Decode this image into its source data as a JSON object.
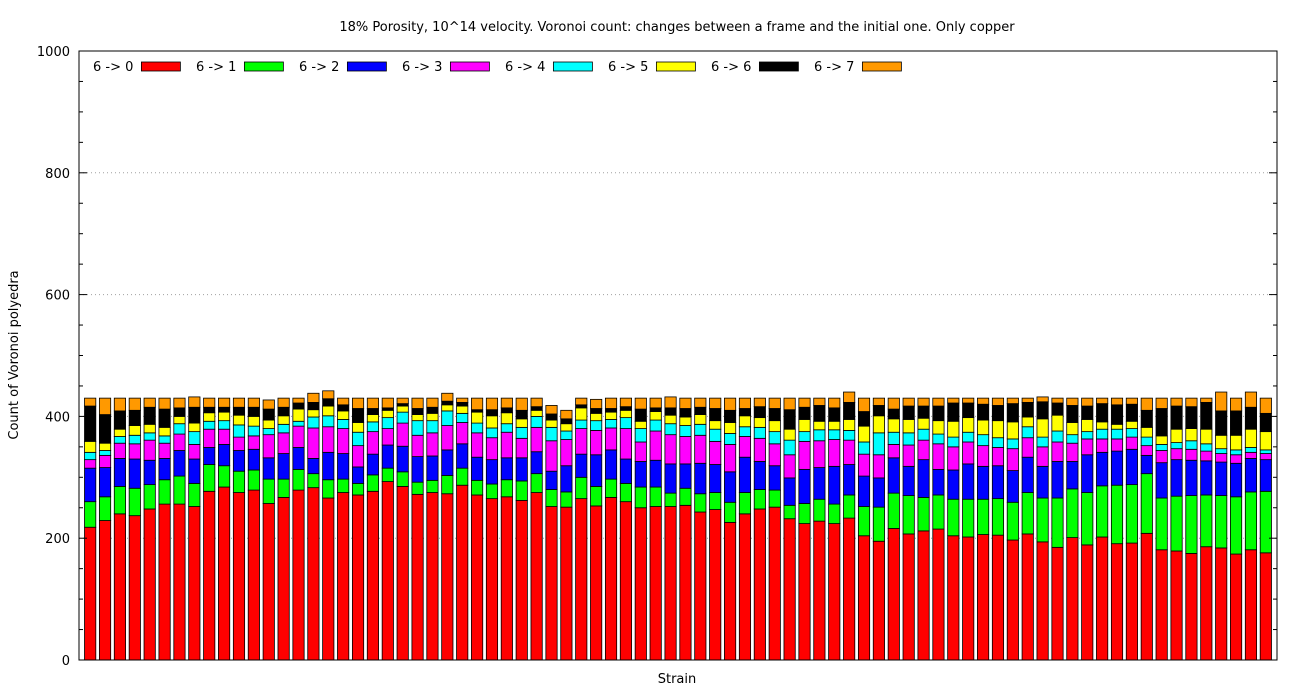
{
  "chart_data": {
    "type": "bar",
    "stacked": true,
    "title": "18% Porosity, 10^14 velocity. Voronoi count: changes between a frame and the initial one. Only copper",
    "xlabel": "Strain",
    "ylabel": "Count of Voronoi polyedra",
    "ylim": [
      0,
      1000
    ],
    "yticks": [
      0,
      200,
      400,
      600,
      800,
      1000
    ],
    "grid": true,
    "legend_position": "top-left",
    "total_per_bar": 430,
    "series": [
      {
        "name": "6 -> 0",
        "color": "#ff0000",
        "values": [
          218,
          229,
          240,
          237,
          248,
          256,
          256,
          252,
          277,
          284,
          275,
          279,
          257,
          267,
          279,
          283,
          266,
          275,
          271,
          277,
          293,
          285,
          272,
          275,
          273,
          287,
          271,
          265,
          268,
          262,
          275,
          252,
          251,
          265,
          253,
          267,
          260,
          250,
          252,
          252,
          254,
          243,
          247,
          226,
          240,
          248,
          251,
          232,
          224,
          228,
          224,
          233,
          204,
          195,
          216,
          207,
          212,
          215,
          204,
          202,
          206,
          205,
          197,
          207,
          194,
          185,
          201,
          189,
          202,
          191,
          192,
          208,
          181,
          179,
          175,
          186,
          184,
          174,
          181,
          176
        ]
      },
      {
        "name": "6 -> 1",
        "color": "#00ff00",
        "values": [
          42,
          39,
          45,
          45,
          40,
          40,
          46,
          38,
          44,
          35,
          35,
          33,
          40,
          30,
          34,
          23,
          30,
          22,
          19,
          27,
          22,
          24,
          20,
          20,
          30,
          28,
          24,
          24,
          28,
          32,
          31,
          28,
          25,
          35,
          32,
          30,
          30,
          34,
          32,
          22,
          28,
          30,
          28,
          33,
          35,
          32,
          28,
          22,
          33,
          36,
          32,
          38,
          48,
          56,
          58,
          63,
          55,
          56,
          60,
          62,
          58,
          60,
          62,
          68,
          72,
          81,
          80,
          86,
          84,
          96,
          96,
          98,
          85,
          90,
          95,
          85,
          86,
          94,
          95,
          101
        ]
      },
      {
        "name": "6 -> 2",
        "color": "#0000ff",
        "values": [
          55,
          48,
          46,
          48,
          40,
          35,
          42,
          40,
          28,
          35,
          34,
          34,
          35,
          42,
          36,
          25,
          45,
          42,
          27,
          34,
          38,
          42,
          42,
          40,
          42,
          40,
          38,
          40,
          36,
          38,
          36,
          30,
          43,
          38,
          52,
          48,
          40,
          42,
          44,
          48,
          40,
          50,
          46,
          50,
          58,
          46,
          40,
          45,
          56,
          52,
          62,
          50,
          50,
          48,
          58,
          48,
          62,
          42,
          48,
          58,
          54,
          54,
          52,
          58,
          52,
          60,
          45,
          62,
          55,
          56,
          58,
          30,
          58,
          60,
          58,
          56,
          55,
          55,
          55,
          52
        ]
      },
      {
        "name": "6 -> 3",
        "color": "#ff00ff",
        "values": [
          14,
          20,
          25,
          25,
          33,
          25,
          27,
          24,
          30,
          25,
          22,
          22,
          38,
          34,
          35,
          50,
          42,
          41,
          35,
          37,
          27,
          38,
          35,
          38,
          40,
          35,
          40,
          36,
          42,
          32,
          40,
          50,
          43,
          42,
          40,
          36,
          50,
          32,
          48,
          48,
          45,
          46,
          38,
          45,
          34,
          38,
          36,
          38,
          46,
          44,
          44,
          40,
          36,
          38,
          22,
          35,
          32,
          42,
          38,
          36,
          34,
          30,
          36,
          32,
          32,
          32,
          30,
          26,
          22,
          20,
          20,
          16,
          20,
          18,
          18,
          16,
          14,
          14,
          10,
          10
        ]
      },
      {
        "name": "6 -> 4",
        "color": "#00ffff",
        "values": [
          12,
          8,
          11,
          14,
          12,
          12,
          17,
          21,
          13,
          14,
          20,
          16,
          10,
          14,
          8,
          18,
          18,
          15,
          22,
          16,
          18,
          18,
          24,
          20,
          24,
          15,
          16,
          16,
          14,
          18,
          18,
          22,
          14,
          14,
          16,
          14,
          18,
          22,
          18,
          18,
          18,
          18,
          20,
          18,
          16,
          18,
          20,
          24,
          16,
          18,
          16,
          16,
          20,
          36,
          20,
          20,
          18,
          16,
          16,
          16,
          18,
          16,
          16,
          18,
          16,
          18,
          14,
          12,
          16,
          16,
          14,
          14,
          10,
          10,
          14,
          12,
          8,
          8,
          8,
          6
        ]
      },
      {
        "name": "6 -> 5",
        "color": "#ffff00",
        "values": [
          18,
          12,
          12,
          16,
          14,
          14,
          12,
          14,
          14,
          14,
          16,
          16,
          14,
          14,
          20,
          12,
          16,
          14,
          16,
          12,
          12,
          10,
          10,
          12,
          10,
          12,
          18,
          20,
          18,
          14,
          10,
          12,
          12,
          20,
          12,
          12,
          12,
          12,
          14,
          14,
          14,
          16,
          14,
          18,
          18,
          16,
          18,
          18,
          20,
          14,
          14,
          18,
          26,
          28,
          22,
          22,
          18,
          22,
          26,
          24,
          24,
          28,
          28,
          16,
          30,
          26,
          20,
          20,
          12,
          8,
          12,
          16,
          14,
          22,
          20,
          24,
          22,
          24,
          30,
          30
        ]
      },
      {
        "name": "6 -> 6",
        "color": "#000000",
        "values": [
          58,
          47,
          30,
          25,
          28,
          30,
          14,
          26,
          9,
          8,
          13,
          15,
          18,
          14,
          10,
          12,
          12,
          10,
          23,
          10,
          4,
          4,
          10,
          10,
          6,
          6,
          4,
          10,
          8,
          14,
          6,
          10,
          8,
          5,
          8,
          6,
          6,
          20,
          6,
          12,
          14,
          12,
          20,
          20,
          12,
          18,
          20,
          32,
          20,
          26,
          22,
          28,
          24,
          17,
          16,
          22,
          20,
          24,
          30,
          24,
          26,
          25,
          30,
          24,
          28,
          20,
          28,
          22,
          30,
          32,
          28,
          28,
          45,
          38,
          36,
          44,
          40,
          40,
          36,
          30
        ]
      },
      {
        "name": "6 -> 7",
        "color": "#ff9900",
        "values": [
          13,
          27,
          21,
          20,
          15,
          18,
          16,
          17,
          15,
          15,
          15,
          15,
          15,
          15,
          8,
          15,
          13,
          11,
          17,
          17,
          16,
          9,
          17,
          15,
          13,
          7,
          19,
          19,
          16,
          20,
          14,
          14,
          14,
          11,
          15,
          17,
          14,
          18,
          16,
          18,
          17,
          15,
          17,
          20,
          17,
          14,
          17,
          19,
          15,
          12,
          16,
          17,
          22,
          12,
          18,
          13,
          13,
          13,
          8,
          8,
          10,
          12,
          9,
          7,
          8,
          8,
          12,
          13,
          9,
          11,
          10,
          20,
          17,
          13,
          14,
          7,
          31,
          21,
          25,
          25
        ]
      }
    ]
  }
}
